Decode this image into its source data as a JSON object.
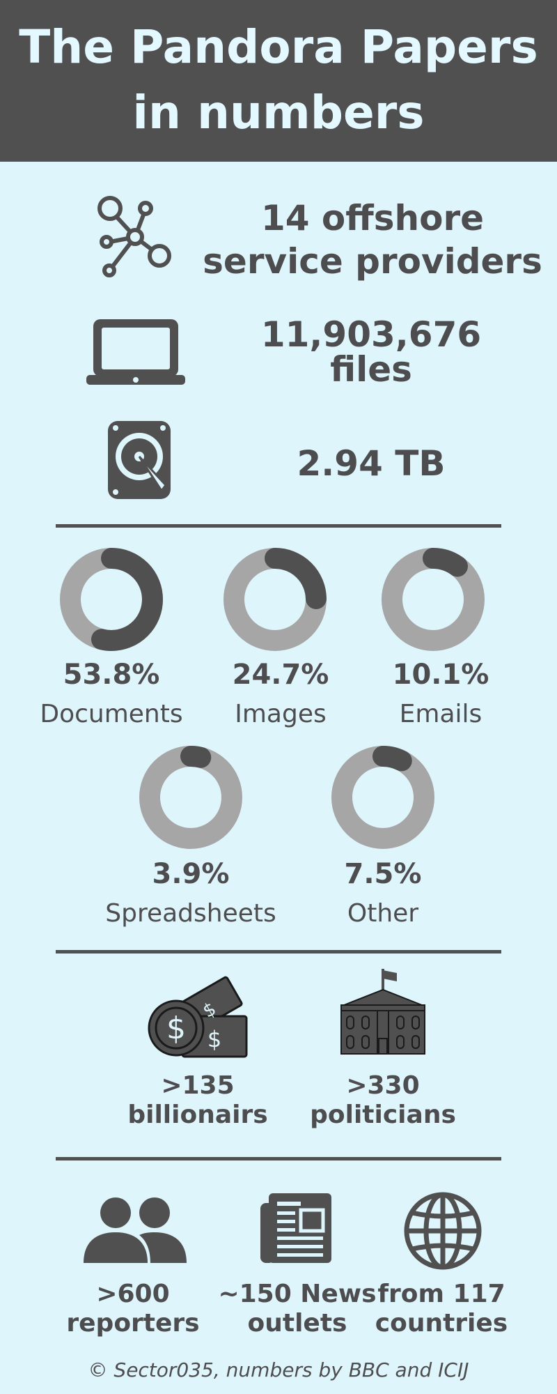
{
  "header": {
    "title_line1": "The Pandora Papers",
    "title_line2": "in numbers"
  },
  "overview": {
    "providers_line1": "14 offshore",
    "providers_line2": "service providers",
    "files_line1": "11,903,676",
    "files_line2": "files",
    "size": "2.94 TB"
  },
  "chart_data": {
    "type": "pie",
    "categories": [
      "Documents",
      "Images",
      "Emails",
      "Spreadsheets",
      "Other"
    ],
    "values": [
      53.8,
      24.7,
      10.1,
      3.9,
      7.5
    ],
    "value_labels": [
      "53.8%",
      "24.7%",
      "10.1%",
      "3.9%",
      "7.5%"
    ],
    "colors": {
      "filled": "#505050",
      "track": "#a6a6a6"
    }
  },
  "people": {
    "billionaires_line1": ">135",
    "billionaires_line2": "billionairs",
    "politicians_line1": ">330",
    "politicians_line2": "politicians"
  },
  "media": {
    "reporters_line1": ">600",
    "reporters_line2": "reporters",
    "outlets_line1": "~150 News",
    "outlets_line2": "outlets",
    "countries_line1": "from 117",
    "countries_line2": "countries"
  },
  "footer": "© Sector035, numbers by BBC and ICIJ",
  "icons": [
    "network-icon",
    "laptop-icon",
    "hard-drive-icon",
    "money-icon",
    "government-building-icon",
    "people-icon",
    "newspaper-icon",
    "globe-icon"
  ]
}
